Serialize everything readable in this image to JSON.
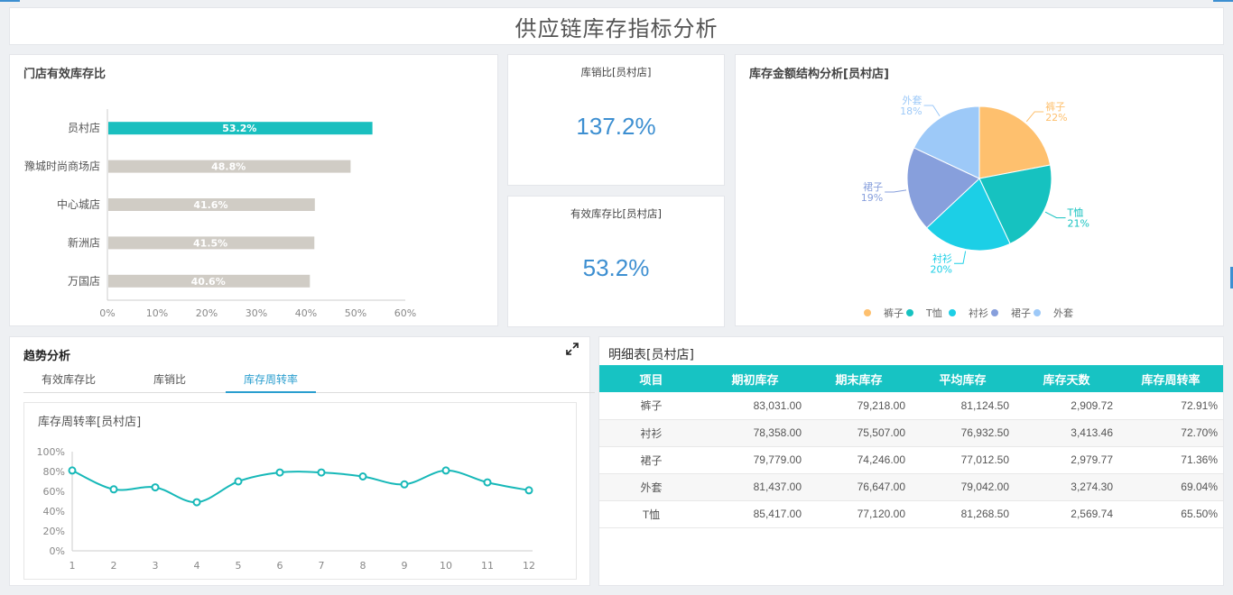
{
  "page": {
    "title": "供应链库存指标分析"
  },
  "store_ratio": {
    "title": "门店有效库存比",
    "chart_data": {
      "type": "bar",
      "categories": [
        "员村店",
        "豫城时尚商场店",
        "中心城店",
        "新洲店",
        "万国店"
      ],
      "values": [
        53.2,
        48.8,
        41.6,
        41.5,
        40.6
      ],
      "value_labels": [
        "53.2%",
        "48.8%",
        "41.6%",
        "41.5%",
        "40.6%"
      ],
      "xlim": [
        0,
        60
      ],
      "xticks": [
        "0%",
        "10%",
        "20%",
        "30%",
        "40%",
        "50%",
        "60%"
      ],
      "colors": {
        "highlight": "#19bfbf",
        "default": "#d0ccc5"
      }
    }
  },
  "kpi_sales": {
    "title": "库销比[员村店]",
    "value": "137.2%"
  },
  "kpi_effective": {
    "title": "有效库存比[员村店]",
    "value": "53.2%"
  },
  "amount_structure": {
    "title": "库存金额结构分析[员村店]",
    "chart_data": {
      "type": "pie",
      "slices": [
        {
          "name": "裤子",
          "value": 22,
          "label": "22%",
          "color": "#fec06e"
        },
        {
          "name": "T恤",
          "value": 21,
          "label": "21%",
          "color": "#16c2c0"
        },
        {
          "name": "衬衫",
          "value": 20,
          "label": "20%",
          "color": "#1ccfe6"
        },
        {
          "name": "裙子",
          "value": 19,
          "label": "19%",
          "color": "#879fdc"
        },
        {
          "name": "外套",
          "value": 18,
          "label": "18%",
          "color": "#9dc9f8"
        }
      ],
      "legend": "bottom"
    }
  },
  "trend": {
    "title": "趋势分析",
    "tabs": [
      {
        "label": "有效库存比"
      },
      {
        "label": "库销比"
      },
      {
        "label": "库存周转率",
        "active": true
      }
    ],
    "chart_title": "库存周转率[员村店]",
    "chart_data": {
      "type": "line",
      "x": [
        1,
        2,
        3,
        4,
        5,
        6,
        7,
        8,
        9,
        10,
        11,
        12
      ],
      "y": [
        81,
        62,
        64,
        49,
        70,
        79,
        79,
        75,
        67,
        81,
        69,
        61
      ],
      "ylim": [
        0,
        100
      ],
      "yticks": [
        "0%",
        "20%",
        "40%",
        "60%",
        "80%",
        "100%"
      ],
      "color": "#16b8b8"
    }
  },
  "detail": {
    "title": "明细表[员村店]",
    "columns": [
      "项目",
      "期初库存",
      "期末库存",
      "平均库存",
      "库存天数",
      "库存周转率"
    ],
    "rows": [
      [
        "裤子",
        "83,031.00",
        "79,218.00",
        "81,124.50",
        "2,909.72",
        "72.91%"
      ],
      [
        "衬衫",
        "78,358.00",
        "75,507.00",
        "76,932.50",
        "3,413.46",
        "72.70%"
      ],
      [
        "裙子",
        "79,779.00",
        "74,246.00",
        "77,012.50",
        "2,979.77",
        "71.36%"
      ],
      [
        "外套",
        "81,437.00",
        "76,647.00",
        "79,042.00",
        "3,274.30",
        "69.04%"
      ],
      [
        "T恤",
        "85,417.00",
        "77,120.00",
        "81,268.50",
        "2,569.74",
        "65.50%"
      ]
    ]
  }
}
